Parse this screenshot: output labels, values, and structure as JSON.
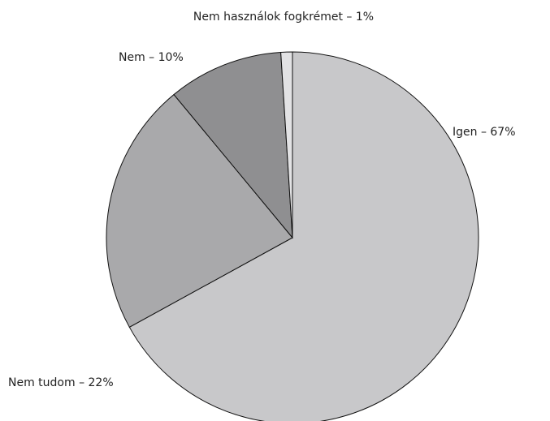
{
  "chart_data": {
    "type": "pie",
    "categories": [
      "Igen – 67%",
      "Nem tudom – 22%",
      "Nem – 10%",
      "Nem használok fogkrémet – 1%"
    ],
    "values": [
      67,
      22,
      10,
      1
    ],
    "colors": [
      "#c8c8ca",
      "#a9a9ab",
      "#8f8f91",
      "#e2e2e4"
    ]
  }
}
